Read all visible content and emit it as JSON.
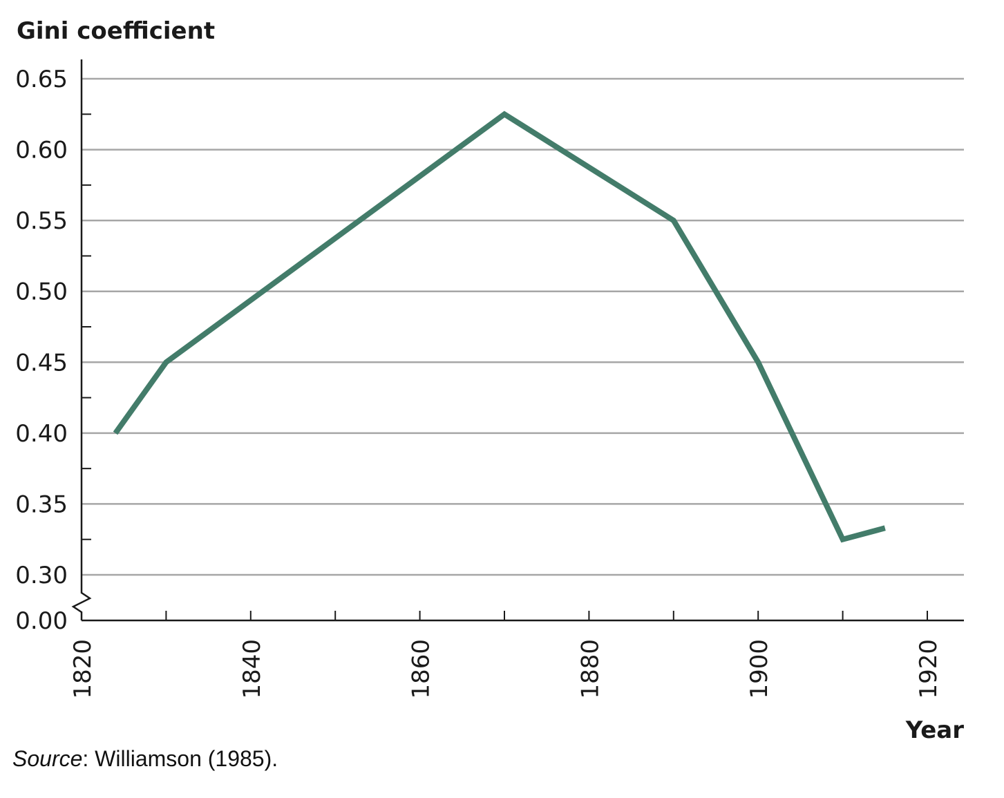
{
  "chart_data": {
    "type": "line",
    "ylabel": "Gini coefficient",
    "xlabel": "Year",
    "x_ticks": [
      "1820",
      "1840",
      "1860",
      "1880",
      "1900",
      "1920"
    ],
    "y_ticks": [
      "0.00",
      "0.30",
      "0.35",
      "0.40",
      "0.45",
      "0.50",
      "0.55",
      "0.60",
      "0.65"
    ],
    "xlim": [
      1820,
      1924
    ],
    "ylim": [
      0.3,
      0.65
    ],
    "y_axis_break": true,
    "grid": "horizontal",
    "series": [
      {
        "x": [
          1824,
          1830,
          1870,
          1890,
          1900,
          1910,
          1915
        ],
        "values": [
          0.4,
          0.45,
          0.625,
          0.55,
          0.45,
          0.325,
          0.333
        ]
      }
    ],
    "colors": {
      "line": "#437c6a",
      "grid": "#a6a6a6",
      "axis": "#1a1a1a",
      "text": "#1a1a1a"
    }
  },
  "source": {
    "label": "Source",
    "text": ": Williamson (1985)."
  }
}
